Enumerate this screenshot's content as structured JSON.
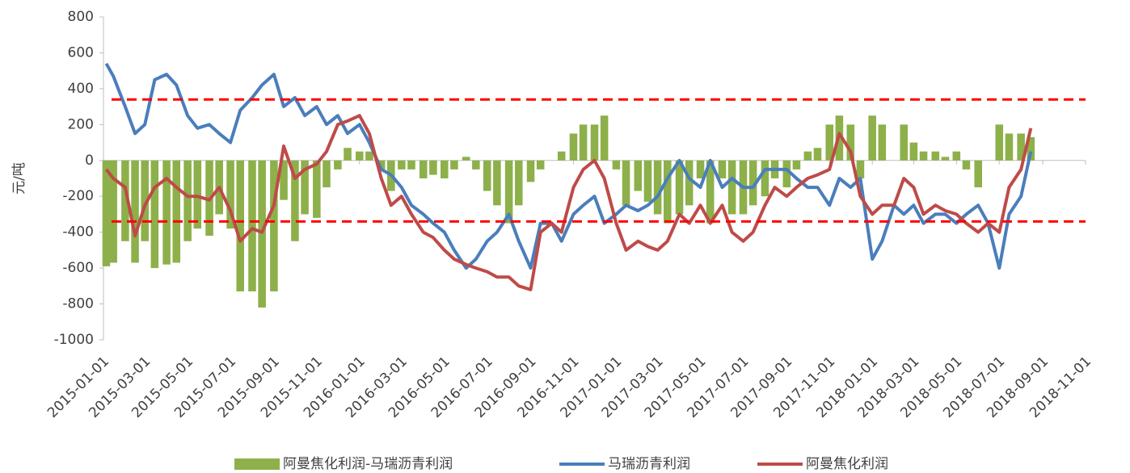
{
  "chart_data": {
    "type": "bar-line",
    "y_label": "元/吨",
    "x": [
      "2015-01-05",
      "2015-01-15",
      "2015-02-01",
      "2015-02-15",
      "2015-03-01",
      "2015-03-15",
      "2015-04-01",
      "2015-04-15",
      "2015-05-01",
      "2015-05-15",
      "2015-06-01",
      "2015-06-15",
      "2015-07-01",
      "2015-07-15",
      "2015-08-01",
      "2015-08-15",
      "2015-09-01",
      "2015-09-15",
      "2015-10-01",
      "2015-10-15",
      "2015-11-01",
      "2015-11-15",
      "2015-12-01",
      "2015-12-15",
      "2016-01-01",
      "2016-01-15",
      "2016-02-01",
      "2016-02-15",
      "2016-03-01",
      "2016-03-15",
      "2016-04-01",
      "2016-04-15",
      "2016-05-01",
      "2016-05-15",
      "2016-06-01",
      "2016-06-15",
      "2016-07-01",
      "2016-07-15",
      "2016-08-01",
      "2016-08-15",
      "2016-09-01",
      "2016-09-15",
      "2016-10-01",
      "2016-10-15",
      "2016-11-01",
      "2016-11-15",
      "2016-12-01",
      "2016-12-15",
      "2017-01-01",
      "2017-01-15",
      "2017-02-01",
      "2017-02-15",
      "2017-03-01",
      "2017-03-15",
      "2017-04-01",
      "2017-04-15",
      "2017-05-01",
      "2017-05-15",
      "2017-06-01",
      "2017-06-15",
      "2017-07-01",
      "2017-07-15",
      "2017-08-01",
      "2017-08-15",
      "2017-09-01",
      "2017-09-15",
      "2017-10-01",
      "2017-10-15",
      "2017-11-01",
      "2017-11-15",
      "2017-12-01",
      "2017-12-15",
      "2018-01-01",
      "2018-01-15",
      "2018-02-01",
      "2018-02-15",
      "2018-03-01",
      "2018-03-15",
      "2018-04-01",
      "2018-04-15",
      "2018-05-01",
      "2018-05-15",
      "2018-06-01",
      "2018-06-15",
      "2018-07-01",
      "2018-07-15",
      "2018-08-01",
      "2018-08-15"
    ],
    "series": [
      {
        "name": "阿曼焦化利润-马瑞沥青利润",
        "kind": "bar",
        "color": "#8db04a",
        "values": [
          -590,
          -570,
          -450,
          -570,
          -450,
          -600,
          -580,
          -570,
          -450,
          -380,
          -420,
          -300,
          -380,
          -730,
          -730,
          -820,
          -730,
          -220,
          -450,
          -300,
          -320,
          -150,
          -50,
          70,
          50,
          50,
          -50,
          -170,
          -50,
          -50,
          -100,
          -80,
          -100,
          -50,
          20,
          -50,
          -170,
          -250,
          -350,
          -250,
          -120,
          -50,
          0,
          50,
          150,
          200,
          200,
          250,
          -50,
          -250,
          -170,
          -230,
          -300,
          -350,
          -300,
          -250,
          -100,
          -350,
          -100,
          -300,
          -300,
          -250,
          -200,
          -100,
          -150,
          -50,
          50,
          70,
          200,
          250,
          200,
          -100,
          250,
          200,
          0,
          200,
          100,
          50,
          50,
          20,
          50,
          -50,
          -150,
          0,
          200,
          150,
          150,
          130
        ]
      },
      {
        "name": "马瑞沥青利润",
        "kind": "line",
        "color": "#4a7ebb",
        "values": [
          540,
          470,
          300,
          150,
          200,
          450,
          480,
          420,
          250,
          180,
          200,
          150,
          100,
          280,
          350,
          420,
          480,
          300,
          350,
          250,
          300,
          200,
          250,
          150,
          200,
          100,
          -50,
          -80,
          -150,
          -250,
          -300,
          -350,
          -400,
          -500,
          -600,
          -550,
          -450,
          -400,
          -300,
          -450,
          -600,
          -350,
          -350,
          -450,
          -300,
          -250,
          -200,
          -350,
          -300,
          -250,
          -280,
          -250,
          -200,
          -100,
          0,
          -100,
          -150,
          0,
          -150,
          -100,
          -150,
          -150,
          -50,
          -50,
          -50,
          -100,
          -150,
          -150,
          -250,
          -100,
          -150,
          -100,
          -550,
          -450,
          -250,
          -300,
          -250,
          -350,
          -300,
          -300,
          -350,
          -300,
          -250,
          -350,
          -600,
          -300,
          -200,
          50
        ]
      },
      {
        "name": "阿曼焦化利润",
        "kind": "line",
        "color": "#be4b48",
        "values": [
          -50,
          -100,
          -150,
          -420,
          -250,
          -150,
          -100,
          -150,
          -200,
          -200,
          -220,
          -150,
          -280,
          -450,
          -380,
          -400,
          -250,
          80,
          -100,
          -50,
          -20,
          50,
          200,
          220,
          250,
          150,
          -100,
          -250,
          -200,
          -300,
          -400,
          -430,
          -500,
          -550,
          -580,
          -600,
          -620,
          -650,
          -650,
          -700,
          -720,
          -400,
          -350,
          -400,
          -150,
          -50,
          0,
          -100,
          -350,
          -500,
          -450,
          -480,
          -500,
          -450,
          -300,
          -350,
          -250,
          -350,
          -250,
          -400,
          -450,
          -400,
          -250,
          -150,
          -200,
          -150,
          -100,
          -80,
          -50,
          150,
          50,
          -200,
          -300,
          -250,
          -250,
          -100,
          -150,
          -300,
          -250,
          -280,
          -300,
          -350,
          -400,
          -350,
          -400,
          -150,
          -50,
          180
        ]
      }
    ],
    "hlines": [
      340,
      -340
    ],
    "hline_color": "#ff0000",
    "xlim": [
      "2015-01-01",
      "2018-11-01"
    ],
    "xticks": [
      "2015-01-01",
      "2015-03-01",
      "2015-05-01",
      "2015-07-01",
      "2015-09-01",
      "2015-11-01",
      "2016-01-01",
      "2016-03-01",
      "2016-05-01",
      "2016-07-01",
      "2016-09-01",
      "2016-11-01",
      "2017-01-01",
      "2017-03-01",
      "2017-05-01",
      "2017-07-01",
      "2017-09-01",
      "2017-11-01",
      "2018-01-01",
      "2018-03-01",
      "2018-05-01",
      "2018-07-01",
      "2018-09-01",
      "2018-11-01"
    ],
    "ylim": [
      -1000,
      800
    ],
    "yticks": [
      -1000,
      -800,
      -600,
      -400,
      -200,
      0,
      200,
      400,
      600,
      800
    ]
  }
}
